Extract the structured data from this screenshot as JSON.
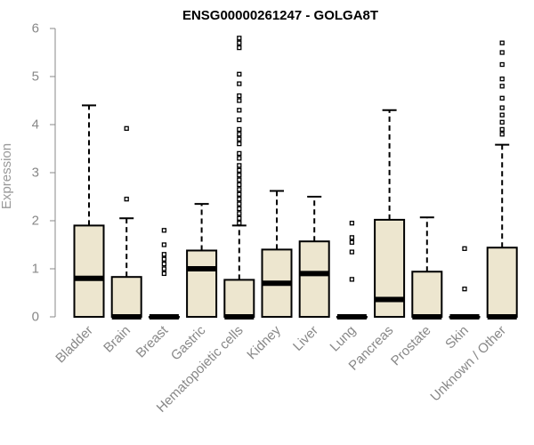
{
  "chart_data": {
    "type": "boxplot",
    "title": "ENSG00000261247 - GOLGA8T",
    "xlabel": "",
    "ylabel": "Expression",
    "ylim": [
      0,
      6
    ],
    "yticks": [
      0,
      1,
      2,
      3,
      4,
      5,
      6
    ],
    "box_fill": "#ede6cf",
    "categories": [
      "Bladder",
      "Brain",
      "Breast",
      "Gastric",
      "Hematopoietic cells",
      "Kidney",
      "Liver",
      "Lung",
      "Pancreas",
      "Prostate",
      "Skin",
      "Unknown / Other"
    ],
    "boxes": [
      {
        "name": "Bladder",
        "q1": 0,
        "median": 0.8,
        "q3": 1.9,
        "whisker_low": 0,
        "whisker_high": 4.4,
        "outliers": []
      },
      {
        "name": "Brain",
        "q1": 0,
        "median": 0,
        "q3": 0.83,
        "whisker_low": 0,
        "whisker_high": 2.05,
        "outliers": [
          2.45,
          3.92
        ]
      },
      {
        "name": "Breast",
        "q1": 0,
        "median": 0,
        "q3": 0,
        "whisker_low": 0,
        "whisker_high": 0,
        "outliers": [
          0.9,
          1.0,
          1.1,
          1.2,
          1.3,
          1.5,
          1.8
        ]
      },
      {
        "name": "Gastric",
        "q1": 0,
        "median": 1.0,
        "q3": 1.38,
        "whisker_low": 0,
        "whisker_high": 2.35,
        "outliers": []
      },
      {
        "name": "Hematopoietic cells",
        "q1": 0,
        "median": 0,
        "q3": 0.77,
        "whisker_low": 0,
        "whisker_high": 1.9,
        "outliers": [
          1.95,
          2.05,
          2.15,
          2.25,
          2.35,
          2.45,
          2.55,
          2.65,
          2.75,
          2.85,
          2.95,
          3.05,
          3.15,
          3.3,
          3.4,
          3.6,
          3.7,
          3.8,
          3.9,
          4.1,
          4.3,
          4.5,
          4.6,
          4.85,
          5.05,
          5.6,
          5.7,
          5.8
        ]
      },
      {
        "name": "Kidney",
        "q1": 0,
        "median": 0.7,
        "q3": 1.4,
        "whisker_low": 0,
        "whisker_high": 2.62,
        "outliers": []
      },
      {
        "name": "Liver",
        "q1": 0,
        "median": 0.9,
        "q3": 1.57,
        "whisker_low": 0,
        "whisker_high": 2.5,
        "outliers": []
      },
      {
        "name": "Lung",
        "q1": 0,
        "median": 0,
        "q3": 0,
        "whisker_low": 0,
        "whisker_high": 0,
        "outliers": [
          0.78,
          1.35,
          1.55,
          1.65,
          1.95
        ]
      },
      {
        "name": "Pancreas",
        "q1": 0,
        "median": 0.36,
        "q3": 2.02,
        "whisker_low": 0,
        "whisker_high": 4.3,
        "outliers": []
      },
      {
        "name": "Prostate",
        "q1": 0,
        "median": 0,
        "q3": 0.94,
        "whisker_low": 0,
        "whisker_high": 2.07,
        "outliers": []
      },
      {
        "name": "Skin",
        "q1": 0,
        "median": 0,
        "q3": 0,
        "whisker_low": 0,
        "whisker_high": 0,
        "outliers": [
          0.58,
          1.42
        ]
      },
      {
        "name": "Unknown / Other",
        "q1": 0,
        "median": 0,
        "q3": 1.44,
        "whisker_low": 0,
        "whisker_high": 3.58,
        "outliers": [
          3.8,
          3.9,
          4.05,
          4.2,
          4.35,
          4.55,
          4.8,
          4.95,
          5.25,
          5.5,
          5.7
        ]
      }
    ]
  }
}
